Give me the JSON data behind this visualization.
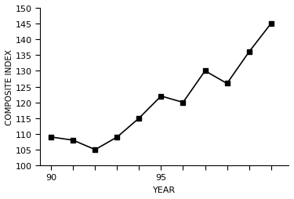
{
  "years": [
    90,
    91,
    92,
    93,
    94,
    95,
    96,
    97,
    98,
    99,
    100
  ],
  "values": [
    109,
    108,
    105,
    109,
    115,
    122,
    120,
    130,
    126,
    136,
    145
  ],
  "xlim": [
    89.5,
    100.8
  ],
  "ylim": [
    100,
    150
  ],
  "xticks_labeled": [
    90,
    95
  ],
  "xticks_all": [
    90,
    91,
    92,
    93,
    94,
    95,
    96,
    97,
    98,
    99,
    100
  ],
  "yticks": [
    100,
    105,
    110,
    115,
    120,
    125,
    130,
    135,
    140,
    145,
    150
  ],
  "xlabel": "YEAR",
  "ylabel": "COMPOSITE INDEX",
  "line_color": "#000000",
  "marker": "s",
  "marker_size": 4,
  "linewidth": 1.2,
  "background_color": "#ffffff"
}
